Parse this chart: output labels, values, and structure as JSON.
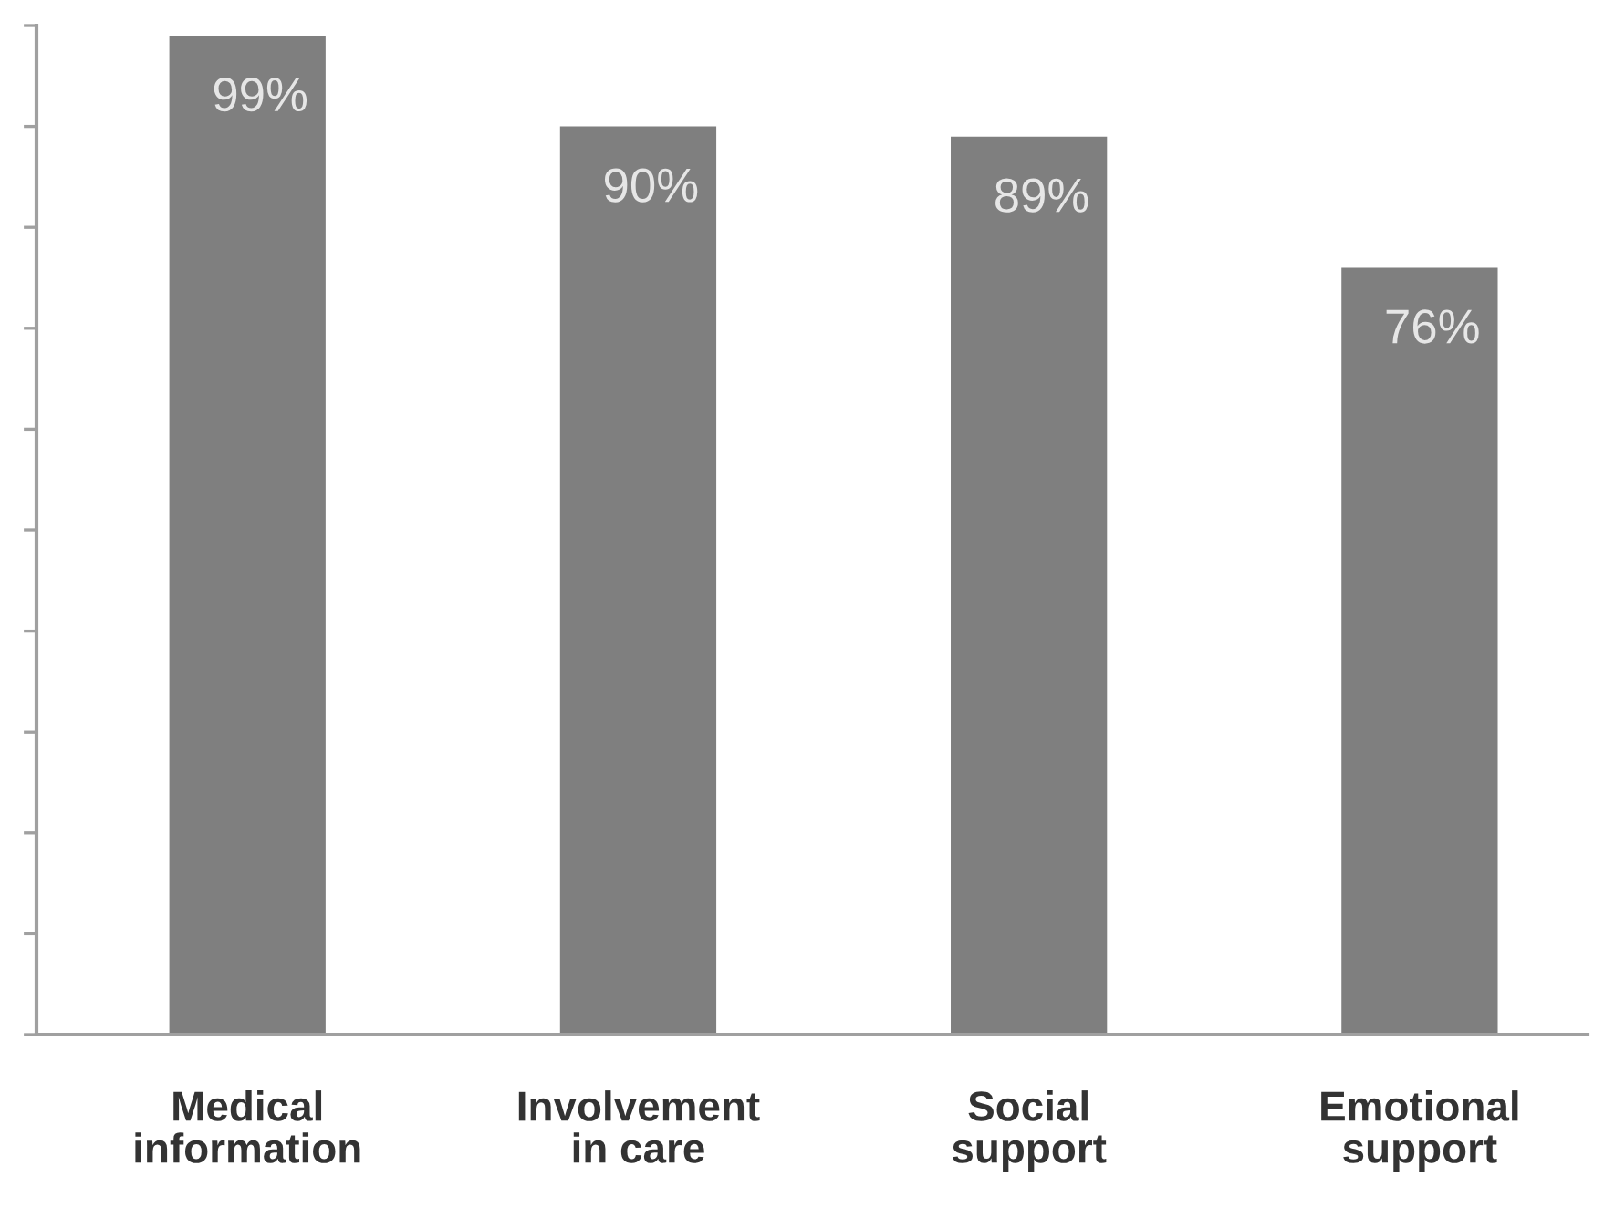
{
  "chart_data": {
    "type": "bar",
    "categories": [
      "Medical\ninformation",
      "Involvement\nin care",
      "Social\nsupport",
      "Emotional\nsupport"
    ],
    "values": [
      99,
      90,
      89,
      76
    ],
    "color": "#7f7f7f",
    "value_labels": [
      "99%",
      "90%",
      "89%",
      "76%"
    ],
    "ylim": [
      0,
      100
    ],
    "yticks": [
      {
        "value": 0,
        "label": null
      },
      {
        "value": 10,
        "label": null
      },
      {
        "value": 20,
        "label": null
      },
      {
        "value": 30,
        "label": null
      },
      {
        "value": 40,
        "label": null
      },
      {
        "value": 50,
        "label": null
      },
      {
        "value": 60,
        "label": null
      },
      {
        "value": 70,
        "label": null
      },
      {
        "value": 80,
        "label": null
      },
      {
        "value": 90,
        "label": null
      },
      {
        "value": 100,
        "label": null
      }
    ],
    "tick_labels": "x"
  }
}
